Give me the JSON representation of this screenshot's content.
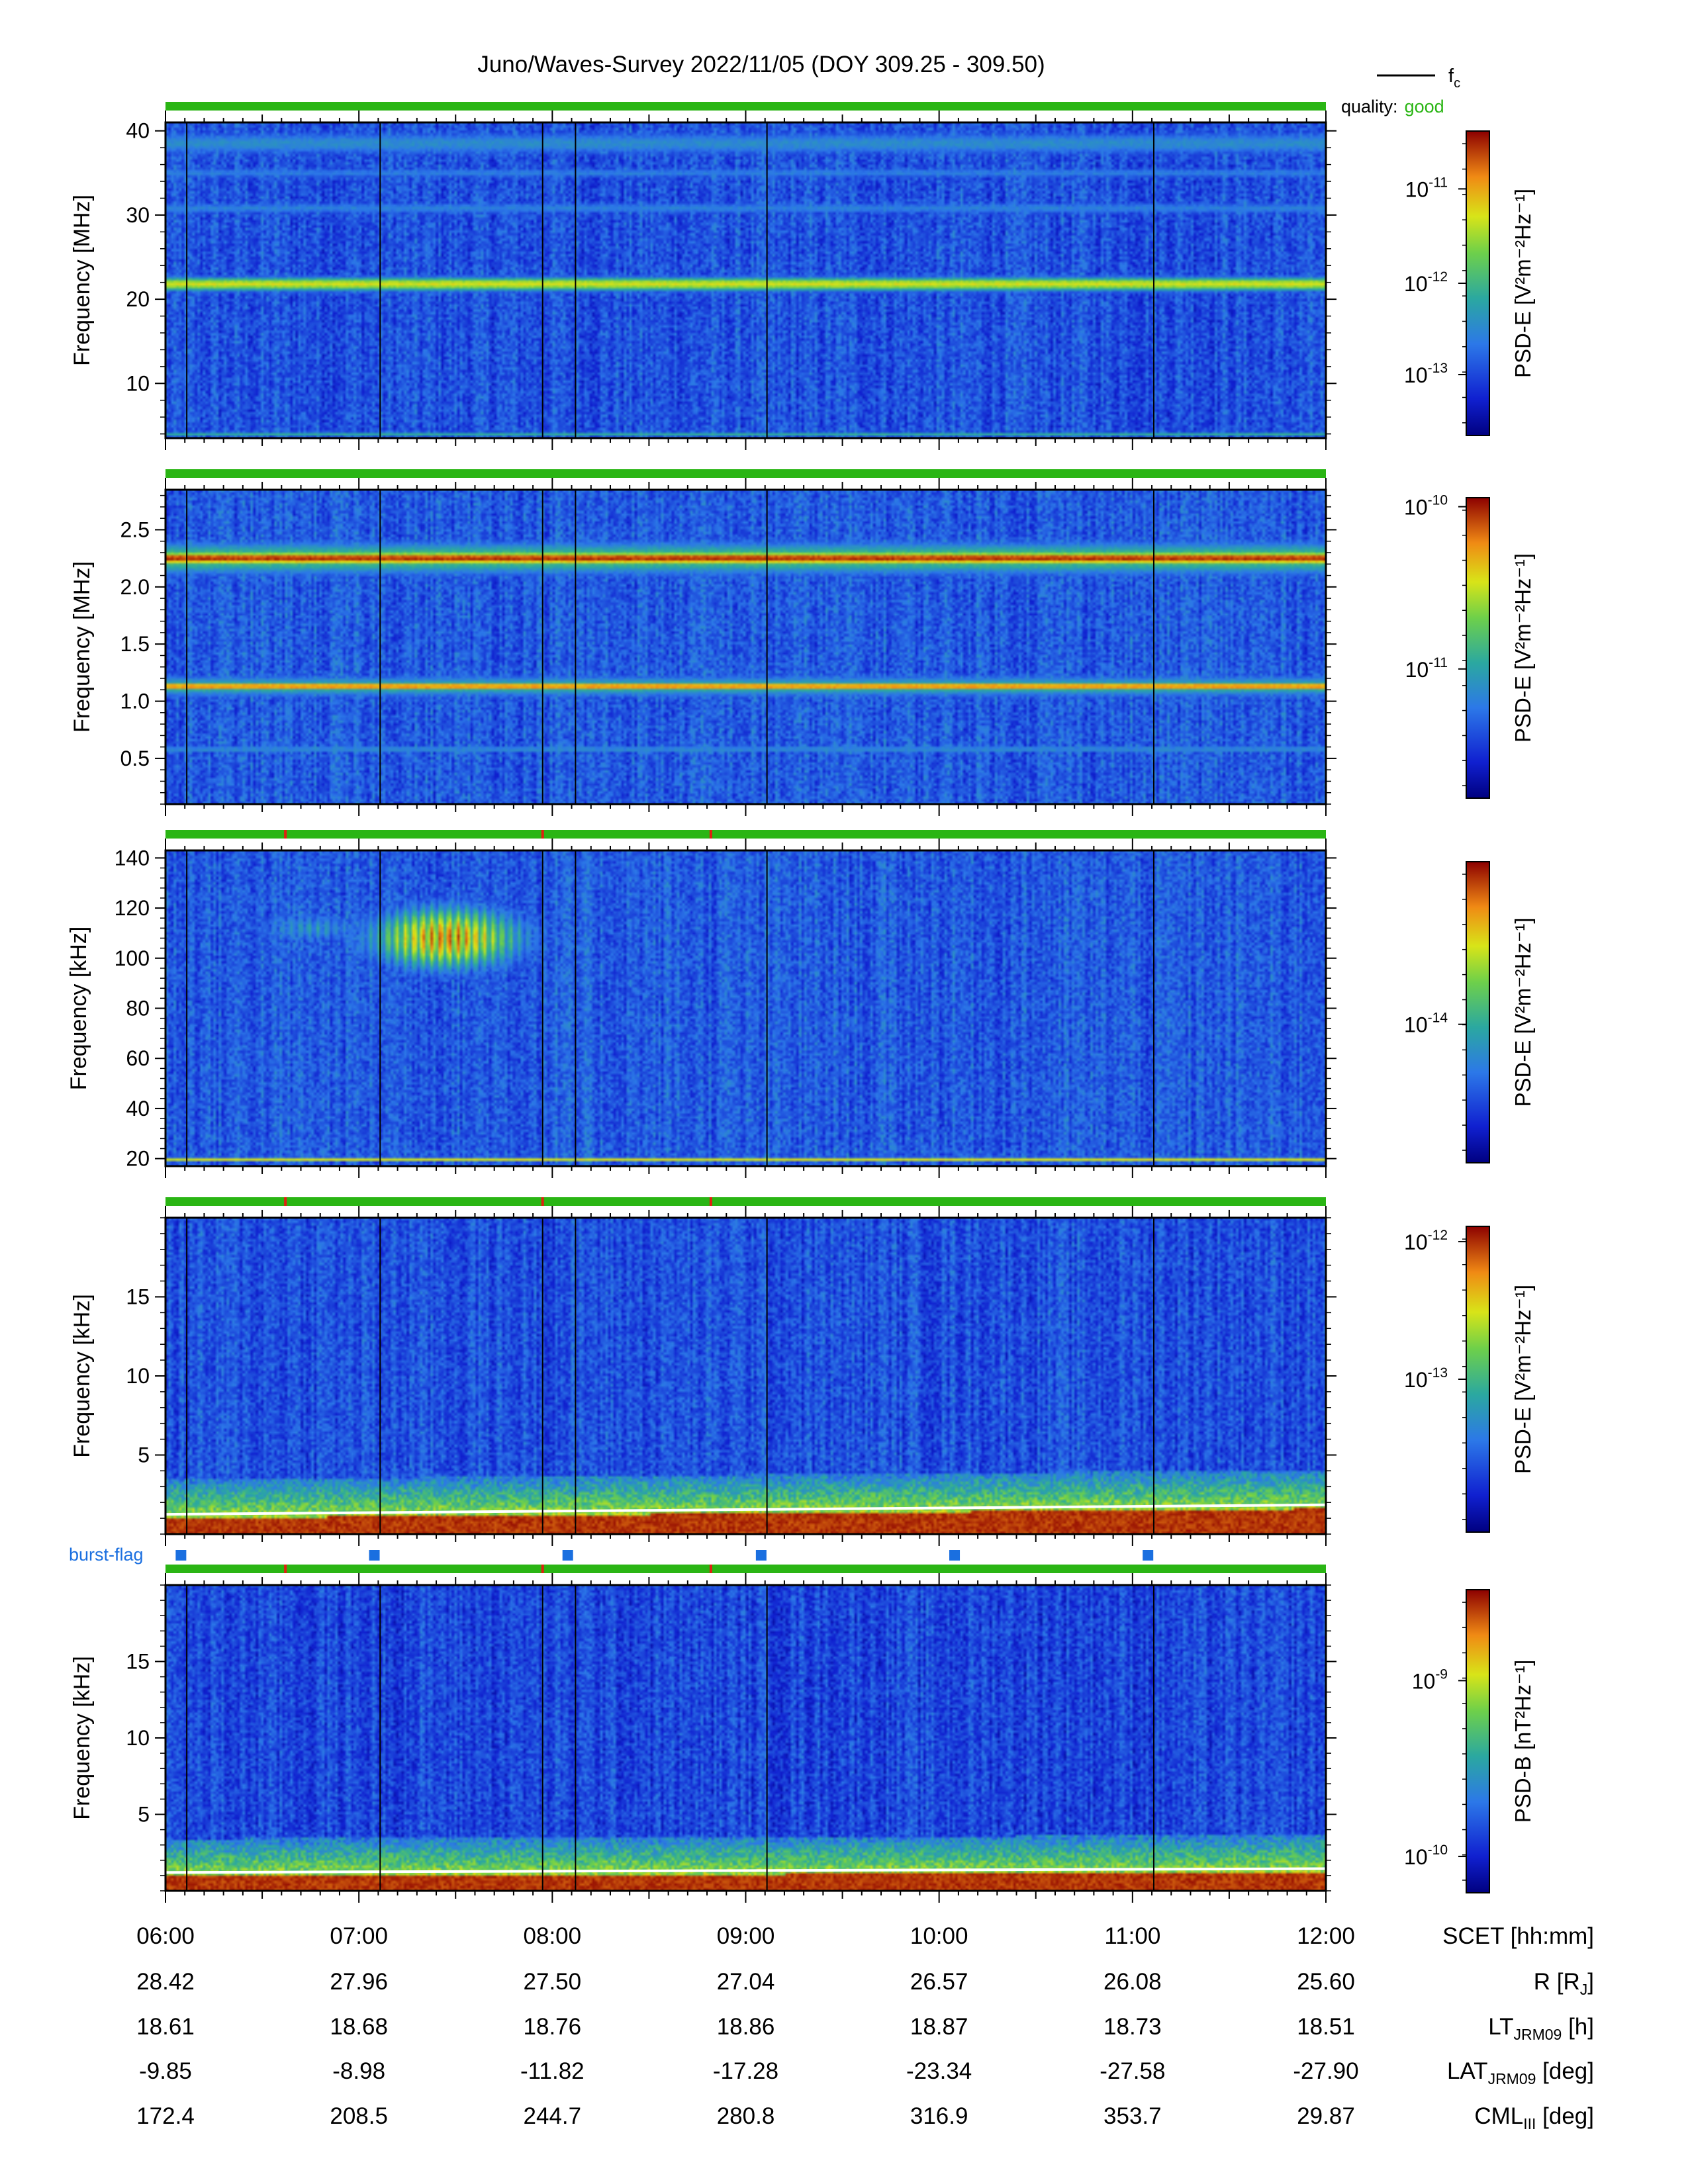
{
  "title": "Juno/Waves-Survey  2022/11/05 (DOY 309.25 - 309.50)",
  "legend": {
    "line_label": "f",
    "line_label_sub": "c"
  },
  "quality": {
    "label": "quality:",
    "value": "good",
    "color": "#2ab514"
  },
  "burst_flag": {
    "label": "burst-flag",
    "color": "#1a6fe0",
    "x_hours": [
      6.08,
      7.08,
      8.08,
      9.08,
      10.08,
      11.08
    ]
  },
  "colors": {
    "quality_bar": "#2ab514",
    "flag_tick": "#e02010",
    "fc_line": "#ffffff",
    "frame": "#000000"
  },
  "chart_data": {
    "type": "heatmap",
    "x_range": [
      6.0,
      12.0
    ],
    "x_ticks": [
      "06:00",
      "07:00",
      "08:00",
      "09:00",
      "10:00",
      "11:00",
      "12:00"
    ],
    "x_label": "SCET [hh:mm]",
    "vertical_markers_hours": [
      6.11,
      7.11,
      7.95,
      8.12,
      9.11,
      11.11
    ],
    "ephemeris": [
      {
        "label": "R",
        "sub": "J",
        "label_rest": "",
        "bracket": true,
        "unit_text": "",
        "values": [
          "28.42",
          "27.96",
          "27.50",
          "27.04",
          "26.57",
          "26.08",
          "25.60"
        ]
      },
      {
        "label": "LT",
        "sub": "JRM09",
        "label_rest": " [h]",
        "bracket": false,
        "values": [
          "18.61",
          "18.68",
          "18.76",
          "18.86",
          "18.87",
          "18.73",
          "18.51"
        ]
      },
      {
        "label": "LAT",
        "sub": "JRM09",
        "label_rest": " [deg]",
        "bracket": false,
        "values": [
          "-9.85",
          "-8.98",
          "-11.82",
          "-17.28",
          "-23.34",
          "-27.58",
          "-27.90"
        ]
      },
      {
        "label": "CML",
        "sub": "III",
        "label_rest": " [deg]",
        "bracket": false,
        "values": [
          "172.4",
          "208.5",
          "244.7",
          "280.8",
          "316.9",
          "353.7",
          "29.87"
        ]
      }
    ],
    "panels": [
      {
        "ylabel": "Frequency [MHz]",
        "ylim": [
          3.5,
          41
        ],
        "yticks": [
          10,
          20,
          30,
          40
        ],
        "ytick_labels": [
          "10",
          "20",
          "30",
          "40"
        ],
        "colorbar": {
          "quantity": "PSD-E",
          "unit": "[V²m⁻²Hz⁻¹]",
          "ticks": [
            {
              "exp": "-11",
              "pos": 0.19
            },
            {
              "exp": "-12",
              "pos": 0.5
            },
            {
              "exp": "-13",
              "pos": 0.8
            }
          ]
        },
        "bands": [
          {
            "f": 21.8,
            "w": 0.9,
            "i": 0.72
          },
          {
            "f": 26,
            "w": 1.4,
            "i": 0.05
          },
          {
            "f": 30.8,
            "w": 0.8,
            "i": 0.33
          },
          {
            "f": 35,
            "w": 0.7,
            "i": 0.32
          },
          {
            "f": 38.5,
            "w": 1.6,
            "i": 0.36
          },
          {
            "f": 4.0,
            "w": 0.3,
            "i": 0.45
          }
        ],
        "base": 0.22,
        "flag_ticks": []
      },
      {
        "ylabel": "Frequency [MHz]",
        "ylim": [
          0.1,
          2.85
        ],
        "yticks": [
          0.5,
          1.0,
          1.5,
          2.0,
          2.5
        ],
        "ytick_labels": [
          "0.5",
          "1.0",
          "1.5",
          "2.0",
          "2.5"
        ],
        "colorbar": {
          "quantity": "PSD-E",
          "unit": "[V²m⁻²Hz⁻¹]",
          "ticks": [
            {
              "exp": "-10",
              "pos": 0.03
            },
            {
              "exp": "-11",
              "pos": 0.57
            }
          ]
        },
        "bands": [
          {
            "f": 2.25,
            "w": 0.06,
            "i": 0.96
          },
          {
            "f": 2.25,
            "w": 0.16,
            "i": 0.55
          },
          {
            "f": 1.13,
            "w": 0.04,
            "i": 0.88
          },
          {
            "f": 1.13,
            "w": 0.11,
            "i": 0.45
          },
          {
            "f": 0.58,
            "w": 0.03,
            "i": 0.38
          },
          {
            "f": 1.38,
            "w": 0.03,
            "i": 0.05
          }
        ],
        "base": 0.24,
        "flag_ticks": []
      },
      {
        "ylabel": "Frequency [kHz]",
        "ylim": [
          17,
          143
        ],
        "yticks": [
          20,
          40,
          60,
          80,
          100,
          120,
          140
        ],
        "ytick_labels": [
          "20",
          "40",
          "60",
          "80",
          "100",
          "120",
          "140"
        ],
        "colorbar": {
          "quantity": "PSD-E",
          "unit": "[V²m⁻²Hz⁻¹]",
          "ticks": [
            {
              "exp": "-14",
              "pos": 0.54
            }
          ]
        },
        "bands": [
          {
            "f": 19.8,
            "w": 0.8,
            "i": 0.75
          }
        ],
        "blobs": [
          {
            "t": 7.45,
            "f": 108,
            "st": 0.45,
            "sf": 14,
            "i": 0.95
          },
          {
            "t": 6.75,
            "f": 112,
            "st": 0.35,
            "sf": 7,
            "i": 0.45
          },
          {
            "t": 9.5,
            "f": 73,
            "st": 0.45,
            "sf": 6,
            "i": 0.28
          }
        ],
        "base": 0.24,
        "flag_ticks": [
          6.62,
          7.95,
          8.82
        ]
      },
      {
        "ylabel": "Frequency [kHz]",
        "ylim": [
          0,
          20
        ],
        "yticks": [
          5,
          10,
          15
        ],
        "ytick_labels": [
          "5",
          "10",
          "15"
        ],
        "colorbar": {
          "quantity": "PSD-E",
          "unit": "[V²m⁻²Hz⁻¹]",
          "ticks": [
            {
              "exp": "-12",
              "pos": 0.05
            },
            {
              "exp": "-13",
              "pos": 0.5
            }
          ]
        },
        "bands": [],
        "low_red": true,
        "fc": [
          1.25,
          1.85
        ],
        "base": 0.22,
        "flag_ticks": [
          6.62,
          7.95,
          8.82
        ]
      },
      {
        "ylabel": "Frequency [kHz]",
        "ylim": [
          0,
          20
        ],
        "yticks": [
          5,
          10,
          15
        ],
        "ytick_labels": [
          "5",
          "10",
          "15"
        ],
        "colorbar": {
          "quantity": "PSD-B",
          "unit": "[nT²Hz⁻¹]",
          "ticks": [
            {
              "exp": "-9",
              "pos": 0.3
            },
            {
              "exp": "-10",
              "pos": 0.88
            }
          ]
        },
        "bands": [],
        "low_red": true,
        "fc": [
          1.2,
          1.45
        ],
        "base": 0.2,
        "flag_ticks": [
          6.62,
          7.95,
          8.82
        ]
      }
    ]
  }
}
